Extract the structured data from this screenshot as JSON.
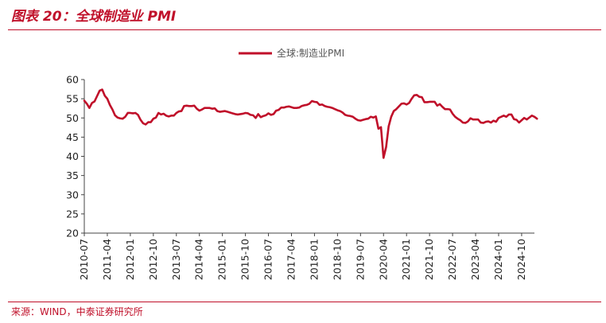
{
  "header": {
    "figure_title": "图表 20：全球制造业 PMI"
  },
  "footer": {
    "source": "来源：WIND，中泰证券研究所"
  },
  "colors": {
    "accent": "#c0102a",
    "series_line": "#c0102a"
  },
  "chart_data": {
    "type": "line",
    "title": "",
    "xlabel": "",
    "ylabel": "",
    "ylim": [
      20,
      60
    ],
    "yticks": [
      20,
      25,
      30,
      35,
      40,
      45,
      50,
      55,
      60
    ],
    "xlim": [
      "2010-07",
      "2025-03"
    ],
    "xticks": [
      "2010-07",
      "2011-04",
      "2012-01",
      "2012-10",
      "2013-07",
      "2014-04",
      "2015-01",
      "2015-10",
      "2016-07",
      "2017-04",
      "2018-01",
      "2018-10",
      "2019-07",
      "2020-04",
      "2021-01",
      "2021-10",
      "2022-07",
      "2023-04",
      "2024-01",
      "2024-10"
    ],
    "grid": false,
    "legend_position": "top-center",
    "series": [
      {
        "name": "全球:制造业PMI",
        "points": [
          [
            "2010-07",
            54.5
          ],
          [
            "2010-08",
            53.7
          ],
          [
            "2010-09",
            52.6
          ],
          [
            "2010-10",
            53.9
          ],
          [
            "2010-11",
            54.3
          ],
          [
            "2010-12",
            55.7
          ],
          [
            "2011-01",
            57.1
          ],
          [
            "2011-02",
            57.4
          ],
          [
            "2011-03",
            55.8
          ],
          [
            "2011-04",
            55.0
          ],
          [
            "2011-05",
            53.4
          ],
          [
            "2011-06",
            52.2
          ],
          [
            "2011-07",
            50.7
          ],
          [
            "2011-08",
            50.1
          ],
          [
            "2011-09",
            49.9
          ],
          [
            "2011-10",
            49.8
          ],
          [
            "2011-11",
            50.3
          ],
          [
            "2011-12",
            51.3
          ],
          [
            "2012-01",
            51.3
          ],
          [
            "2012-02",
            51.2
          ],
          [
            "2012-03",
            51.3
          ],
          [
            "2012-04",
            50.8
          ],
          [
            "2012-05",
            49.5
          ],
          [
            "2012-06",
            48.6
          ],
          [
            "2012-07",
            48.3
          ],
          [
            "2012-08",
            48.9
          ],
          [
            "2012-09",
            48.9
          ],
          [
            "2012-10",
            49.8
          ],
          [
            "2012-11",
            50.1
          ],
          [
            "2012-12",
            51.3
          ],
          [
            "2013-01",
            50.9
          ],
          [
            "2013-02",
            51.1
          ],
          [
            "2013-03",
            50.6
          ],
          [
            "2013-04",
            50.4
          ],
          [
            "2013-05",
            50.6
          ],
          [
            "2013-06",
            50.6
          ],
          [
            "2013-07",
            51.3
          ],
          [
            "2013-08",
            51.7
          ],
          [
            "2013-09",
            51.8
          ],
          [
            "2013-10",
            53.1
          ],
          [
            "2013-11",
            53.2
          ],
          [
            "2013-12",
            53.1
          ],
          [
            "2014-01",
            53.1
          ],
          [
            "2014-02",
            53.2
          ],
          [
            "2014-03",
            52.4
          ],
          [
            "2014-04",
            51.9
          ],
          [
            "2014-05",
            52.2
          ],
          [
            "2014-06",
            52.6
          ],
          [
            "2014-07",
            52.6
          ],
          [
            "2014-08",
            52.6
          ],
          [
            "2014-09",
            52.4
          ],
          [
            "2014-10",
            52.5
          ],
          [
            "2014-11",
            51.8
          ],
          [
            "2014-12",
            51.6
          ],
          [
            "2015-01",
            51.7
          ],
          [
            "2015-02",
            51.8
          ],
          [
            "2015-03",
            51.6
          ],
          [
            "2015-04",
            51.4
          ],
          [
            "2015-05",
            51.2
          ],
          [
            "2015-06",
            51.0
          ],
          [
            "2015-07",
            50.9
          ],
          [
            "2015-08",
            51.0
          ],
          [
            "2015-09",
            51.1
          ],
          [
            "2015-10",
            51.3
          ],
          [
            "2015-11",
            51.2
          ],
          [
            "2015-12",
            50.8
          ],
          [
            "2016-01",
            50.7
          ],
          [
            "2016-02",
            50.0
          ],
          [
            "2016-03",
            51.0
          ],
          [
            "2016-04",
            50.2
          ],
          [
            "2016-05",
            50.5
          ],
          [
            "2016-06",
            50.7
          ],
          [
            "2016-07",
            51.2
          ],
          [
            "2016-08",
            50.8
          ],
          [
            "2016-09",
            51.0
          ],
          [
            "2016-10",
            51.9
          ],
          [
            "2016-11",
            52.1
          ],
          [
            "2016-12",
            52.7
          ],
          [
            "2017-01",
            52.7
          ],
          [
            "2017-02",
            52.9
          ],
          [
            "2017-03",
            53.0
          ],
          [
            "2017-04",
            52.8
          ],
          [
            "2017-05",
            52.6
          ],
          [
            "2017-06",
            52.6
          ],
          [
            "2017-07",
            52.7
          ],
          [
            "2017-08",
            53.1
          ],
          [
            "2017-09",
            53.3
          ],
          [
            "2017-10",
            53.4
          ],
          [
            "2017-11",
            53.7
          ],
          [
            "2017-12",
            54.4
          ],
          [
            "2018-01",
            54.2
          ],
          [
            "2018-02",
            54.1
          ],
          [
            "2018-03",
            53.4
          ],
          [
            "2018-04",
            53.5
          ],
          [
            "2018-05",
            53.1
          ],
          [
            "2018-06",
            52.9
          ],
          [
            "2018-07",
            52.8
          ],
          [
            "2018-08",
            52.6
          ],
          [
            "2018-09",
            52.3
          ],
          [
            "2018-10",
            52.0
          ],
          [
            "2018-11",
            51.8
          ],
          [
            "2018-12",
            51.4
          ],
          [
            "2019-01",
            50.8
          ],
          [
            "2019-02",
            50.6
          ],
          [
            "2019-03",
            50.5
          ],
          [
            "2019-04",
            50.3
          ],
          [
            "2019-05",
            49.8
          ],
          [
            "2019-06",
            49.4
          ],
          [
            "2019-07",
            49.3
          ],
          [
            "2019-08",
            49.5
          ],
          [
            "2019-09",
            49.7
          ],
          [
            "2019-10",
            49.8
          ],
          [
            "2019-11",
            50.3
          ],
          [
            "2019-12",
            50.1
          ],
          [
            "2020-01",
            50.4
          ],
          [
            "2020-02",
            47.2
          ],
          [
            "2020-03",
            47.6
          ],
          [
            "2020-04",
            39.6
          ],
          [
            "2020-05",
            42.4
          ],
          [
            "2020-06",
            47.8
          ],
          [
            "2020-07",
            50.3
          ],
          [
            "2020-08",
            51.8
          ],
          [
            "2020-09",
            52.3
          ],
          [
            "2020-10",
            53.0
          ],
          [
            "2020-11",
            53.7
          ],
          [
            "2020-12",
            53.8
          ],
          [
            "2021-01",
            53.5
          ],
          [
            "2021-02",
            53.9
          ],
          [
            "2021-03",
            55.0
          ],
          [
            "2021-04",
            55.9
          ],
          [
            "2021-05",
            56.0
          ],
          [
            "2021-06",
            55.5
          ],
          [
            "2021-07",
            55.4
          ],
          [
            "2021-08",
            54.1
          ],
          [
            "2021-09",
            54.1
          ],
          [
            "2021-10",
            54.2
          ],
          [
            "2021-11",
            54.2
          ],
          [
            "2021-12",
            54.2
          ],
          [
            "2022-01",
            53.2
          ],
          [
            "2022-02",
            53.6
          ],
          [
            "2022-03",
            52.9
          ],
          [
            "2022-04",
            52.3
          ],
          [
            "2022-05",
            52.3
          ],
          [
            "2022-06",
            52.2
          ],
          [
            "2022-07",
            51.1
          ],
          [
            "2022-08",
            50.3
          ],
          [
            "2022-09",
            49.8
          ],
          [
            "2022-10",
            49.4
          ],
          [
            "2022-11",
            48.8
          ],
          [
            "2022-12",
            48.7
          ],
          [
            "2023-01",
            49.1
          ],
          [
            "2023-02",
            49.9
          ],
          [
            "2023-03",
            49.6
          ],
          [
            "2023-04",
            49.6
          ],
          [
            "2023-05",
            49.6
          ],
          [
            "2023-06",
            48.8
          ],
          [
            "2023-07",
            48.7
          ],
          [
            "2023-08",
            49.0
          ],
          [
            "2023-09",
            49.1
          ],
          [
            "2023-10",
            48.8
          ],
          [
            "2023-11",
            49.3
          ],
          [
            "2023-12",
            49.0
          ],
          [
            "2024-01",
            50.0
          ],
          [
            "2024-02",
            50.3
          ],
          [
            "2024-03",
            50.6
          ],
          [
            "2024-04",
            50.3
          ],
          [
            "2024-05",
            50.9
          ],
          [
            "2024-06",
            50.9
          ],
          [
            "2024-07",
            49.7
          ],
          [
            "2024-08",
            49.5
          ],
          [
            "2024-09",
            48.8
          ],
          [
            "2024-10",
            49.4
          ],
          [
            "2024-11",
            50.0
          ],
          [
            "2024-12",
            49.6
          ],
          [
            "2025-01",
            50.1
          ],
          [
            "2025-02",
            50.6
          ],
          [
            "2025-03",
            50.3
          ],
          [
            "2025-04",
            49.8
          ]
        ]
      }
    ]
  }
}
